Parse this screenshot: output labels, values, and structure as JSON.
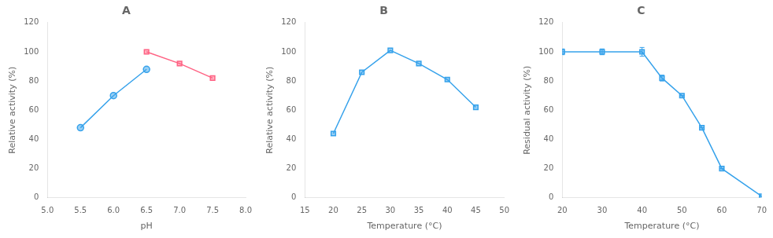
{
  "chart_data": [
    {
      "type": "line",
      "title": "A",
      "x_label": "pH",
      "y_label": "Relative activity (%)",
      "xlim": [
        5.0,
        8.0
      ],
      "ylim": [
        0,
        120
      ],
      "xticks": [
        {
          "value": 5.0,
          "label": "5.0"
        },
        5.5,
        {
          "value": 6.0,
          "label": "6.0"
        },
        6.5,
        {
          "value": 7.0,
          "label": "7.0"
        },
        7.5,
        {
          "value": 8.0,
          "label": "8.0"
        }
      ],
      "yticks": [
        0,
        20,
        40,
        60,
        80,
        100,
        120
      ],
      "grid": false,
      "series": [
        {
          "marker": "circle",
          "x": [
            5.5,
            6.0,
            6.5
          ],
          "values": [
            48,
            70,
            88
          ]
        },
        {
          "marker": "square",
          "x": [
            6.5,
            7.0,
            7.5
          ],
          "values": [
            100,
            92,
            82
          ]
        }
      ]
    },
    {
      "type": "line",
      "title": "B",
      "x_label": "Temperature (°C)",
      "y_label": "Relative activity (%)",
      "xlim": [
        15,
        50
      ],
      "ylim": [
        0,
        120
      ],
      "xticks": [
        15,
        20,
        25,
        30,
        35,
        40,
        45,
        50
      ],
      "yticks": [
        0,
        20,
        40,
        60,
        80,
        100,
        120
      ],
      "grid": false,
      "series": [
        {
          "marker": "square",
          "x": [
            20,
            25,
            30,
            35,
            40,
            45
          ],
          "values": [
            44,
            86,
            101,
            92,
            81,
            62
          ]
        }
      ]
    },
    {
      "type": "line",
      "title": "C",
      "x_label": "Temperature (°C)",
      "y_label": "Residual activity (%)",
      "xlim": [
        20,
        70
      ],
      "ylim": [
        0,
        120
      ],
      "xticks": [
        20,
        30,
        40,
        50,
        60,
        70
      ],
      "yticks": [
        0,
        20,
        40,
        60,
        80,
        100,
        120
      ],
      "grid": false,
      "series": [
        {
          "marker": "square",
          "x": [
            20,
            30,
            40,
            45,
            50,
            55,
            60,
            70
          ],
          "values": [
            100,
            100,
            100,
            82,
            70,
            48,
            20,
            1
          ],
          "yerr": [
            2,
            2,
            3,
            2,
            0,
            0,
            0,
            0
          ]
        }
      ]
    }
  ]
}
